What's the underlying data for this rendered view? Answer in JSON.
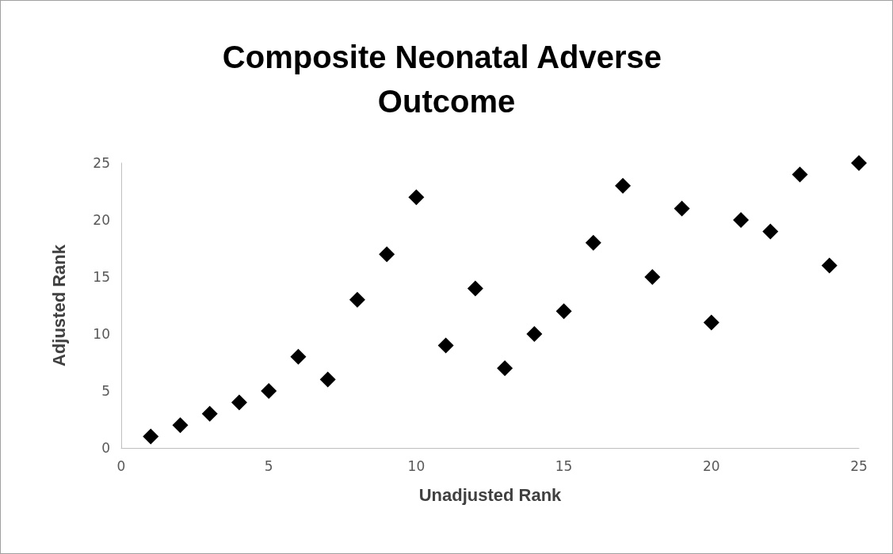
{
  "chart_data": {
    "type": "scatter",
    "title": "Composite Neonatal Adverse Outcome",
    "xlabel": "Unadjusted Rank",
    "ylabel": "Adjusted Rank",
    "x": [
      1,
      2,
      3,
      4,
      5,
      6,
      7,
      8,
      9,
      10,
      11,
      12,
      13,
      14,
      15,
      16,
      17,
      18,
      19,
      20,
      21,
      22,
      23,
      24,
      25
    ],
    "values": [
      1,
      2,
      3,
      4,
      5,
      8,
      6,
      13,
      17,
      22,
      9,
      14,
      7,
      10,
      12,
      18,
      23,
      15,
      21,
      11,
      20,
      19,
      24,
      16,
      25
    ],
    "color": "#000000",
    "marker": "diamond",
    "xlim": [
      0,
      25
    ],
    "ylim": [
      0,
      25
    ],
    "xticks": [
      0,
      5,
      10,
      15,
      20,
      25
    ],
    "yticks": [
      0,
      5,
      10,
      15,
      20,
      25
    ],
    "grid": false
  }
}
